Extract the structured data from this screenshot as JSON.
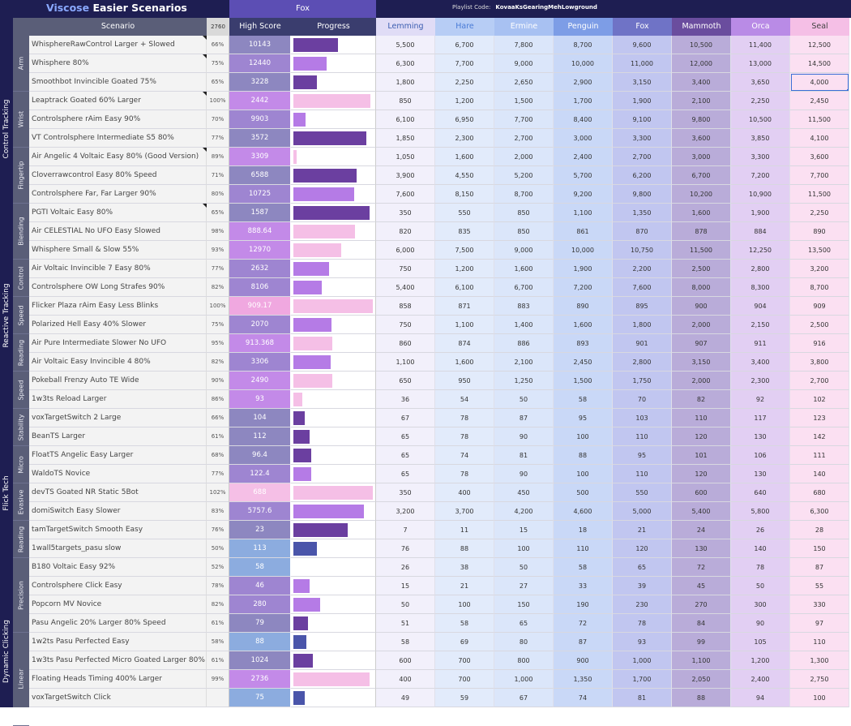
{
  "header": {
    "title_part1": "Viscose",
    "title_part2": "Easier Scenarios",
    "fox_label": "Fox",
    "playlist_label": "Playlist Code:",
    "playlist_code": "KovaaKsGearingMehLowground",
    "scenario_col": "Scenario",
    "pct_col": "2760",
    "highscore_col": "High Score",
    "progress_col": "Progress"
  },
  "ranks": [
    {
      "name": "Lemming",
      "bg": "#e0dcf6",
      "col": "#f2f0fb",
      "fg": "#3b5db0"
    },
    {
      "name": "Hare",
      "bg": "#b7cdf5",
      "col": "#e2ebfb",
      "fg": "#4a7bd6"
    },
    {
      "name": "Ermine",
      "bg": "#a8c1f2",
      "col": "#dbe6fa",
      "fg": "#ffffff"
    },
    {
      "name": "Penguin",
      "bg": "#7d9de6",
      "col": "#c9d8f7",
      "fg": "#ffffff"
    },
    {
      "name": "Fox",
      "bg": "#6f73c6",
      "col": "#c1c6f0",
      "fg": "#ffffff"
    },
    {
      "name": "Mammoth",
      "bg": "#6a4d9e",
      "col": "#b9acd9",
      "fg": "#ffffff"
    },
    {
      "name": "Orca",
      "bg": "#b98be6",
      "col": "#e2cff3",
      "fg": "#ffffff"
    },
    {
      "name": "Seal",
      "bg": "#f5bfe6",
      "col": "#fbe0f2",
      "fg": "#444444"
    }
  ],
  "categories": [
    {
      "label": "Control Tracking",
      "start": 0,
      "count": 10
    },
    {
      "label": "Reactive Tracking",
      "start": 10,
      "count": 10
    },
    {
      "label": "Flick Tech",
      "start": 20,
      "count": 9
    },
    {
      "label": "Dynamic Clicking",
      "start": 29,
      "count": 8
    }
  ],
  "subcategories": [
    {
      "label": "Arm",
      "start": 0,
      "count": 3
    },
    {
      "label": "Wrist",
      "start": 3,
      "count": 3
    },
    {
      "label": "Fingertip",
      "start": 6,
      "count": 3
    },
    {
      "label": "Blending",
      "start": 9,
      "count": 3
    },
    {
      "label": "Control",
      "start": 12,
      "count": 2
    },
    {
      "label": "Speed",
      "start": 14,
      "count": 2
    },
    {
      "label": "Reading",
      "start": 16,
      "count": 2
    },
    {
      "label": "Speed",
      "start": 18,
      "count": 2
    },
    {
      "label": "Stability",
      "start": 20,
      "count": 2
    },
    {
      "label": "Micro",
      "start": 22,
      "count": 2
    },
    {
      "label": "Evasive",
      "start": 24,
      "count": 2
    },
    {
      "label": "Reading",
      "start": 26,
      "count": 2
    },
    {
      "label": "Precision",
      "start": 28,
      "count": 4
    },
    {
      "label": "Linear",
      "start": 32,
      "count": 5
    }
  ],
  "rows": [
    {
      "name": "WhisphereRawControl Larger + Slowed",
      "pct": "66%",
      "hs": "10143",
      "hs_bg": "#8d87c0",
      "prog": 0.56,
      "pc": "#6b3fa0",
      "ranks": [
        "5,500",
        "6,700",
        "7,800",
        "8,700",
        "9,600",
        "10,500",
        "11,400",
        "12,500"
      ],
      "note": true
    },
    {
      "name": "Whisphere 80%",
      "pct": "75%",
      "hs": "12440",
      "hs_bg": "#9e85d1",
      "prog": 0.42,
      "pc": "#b57be6",
      "ranks": [
        "6,300",
        "7,700",
        "9,000",
        "10,000",
        "11,000",
        "12,000",
        "13,000",
        "14,500"
      ],
      "note": true
    },
    {
      "name": "Smoothbot Invincible Goated 75%",
      "pct": "65%",
      "hs": "3228",
      "hs_bg": "#8d87c0",
      "prog": 0.3,
      "pc": "#6b3fa0",
      "ranks": [
        "1,800",
        "2,250",
        "2,650",
        "2,900",
        "3,150",
        "3,400",
        "3,650",
        "4,000"
      ]
    },
    {
      "name": "Leaptrack Goated 60% Larger",
      "pct": "100%",
      "hs": "2442",
      "hs_bg": "#c38ae8",
      "prog": 0.97,
      "pc": "#f5bfe6",
      "ranks": [
        "850",
        "1,200",
        "1,500",
        "1,700",
        "1,900",
        "2,100",
        "2,250",
        "2,450"
      ],
      "note": true
    },
    {
      "name": "Controlsphere rAim Easy 90%",
      "pct": "70%",
      "hs": "9903",
      "hs_bg": "#9e85d1",
      "prog": 0.15,
      "pc": "#b57be6",
      "ranks": [
        "6,100",
        "6,950",
        "7,700",
        "8,400",
        "9,100",
        "9,800",
        "10,500",
        "11,500"
      ]
    },
    {
      "name": "VT Controlsphere Intermediate S5 80%",
      "pct": "77%",
      "hs": "3572",
      "hs_bg": "#8d87c0",
      "prog": 0.92,
      "pc": "#6b3fa0",
      "ranks": [
        "1,850",
        "2,300",
        "2,700",
        "3,000",
        "3,300",
        "3,600",
        "3,850",
        "4,100"
      ]
    },
    {
      "name": "Air Angelic 4 Voltaic Easy 80% (Good Version)",
      "pct": "89%",
      "hs": "3309",
      "hs_bg": "#c38ae8",
      "prog": 0.04,
      "pc": "#f5bfe6",
      "ranks": [
        "1,050",
        "1,600",
        "2,000",
        "2,400",
        "2,700",
        "3,000",
        "3,300",
        "3,600"
      ],
      "note": true
    },
    {
      "name": "Cloverrawcontrol Easy 80% Speed",
      "pct": "71%",
      "hs": "6588",
      "hs_bg": "#8d87c0",
      "prog": 0.8,
      "pc": "#6b3fa0",
      "ranks": [
        "3,900",
        "4,550",
        "5,200",
        "5,700",
        "6,200",
        "6,700",
        "7,200",
        "7,700"
      ]
    },
    {
      "name": "Controlsphere Far, Far Larger 90%",
      "pct": "80%",
      "hs": "10725",
      "hs_bg": "#9e85d1",
      "prog": 0.77,
      "pc": "#b57be6",
      "ranks": [
        "7,600",
        "8,150",
        "8,700",
        "9,200",
        "9,800",
        "10,200",
        "10,900",
        "11,500"
      ]
    },
    {
      "name": "PGTI Voltaic Easy 80%",
      "pct": "65%",
      "hs": "1587",
      "hs_bg": "#8d87c0",
      "prog": 0.96,
      "pc": "#6b3fa0",
      "ranks": [
        "350",
        "550",
        "850",
        "1,100",
        "1,350",
        "1,600",
        "1,900",
        "2,250"
      ],
      "note": true
    },
    {
      "name": "Air CELESTIAL No UFO Easy Slowed",
      "pct": "98%",
      "hs": "888.64",
      "hs_bg": "#c38ae8",
      "prog": 0.78,
      "pc": "#f5bfe6",
      "ranks": [
        "820",
        "835",
        "850",
        "861",
        "870",
        "878",
        "884",
        "890"
      ]
    },
    {
      "name": "Whisphere Small & Slow 55%",
      "pct": "93%",
      "hs": "12970",
      "hs_bg": "#c38ae8",
      "prog": 0.6,
      "pc": "#f5bfe6",
      "ranks": [
        "6,000",
        "7,500",
        "9,000",
        "10,000",
        "10,750",
        "11,500",
        "12,250",
        "13,500"
      ]
    },
    {
      "name": "Air Voltaic Invincible 7 Easy 80%",
      "pct": "77%",
      "hs": "2632",
      "hs_bg": "#9e85d1",
      "prog": 0.45,
      "pc": "#b57be6",
      "ranks": [
        "750",
        "1,200",
        "1,600",
        "1,900",
        "2,200",
        "2,500",
        "2,800",
        "3,200"
      ]
    },
    {
      "name": "Controlsphere OW Long Strafes 90%",
      "pct": "82%",
      "hs": "8106",
      "hs_bg": "#9e85d1",
      "prog": 0.36,
      "pc": "#b57be6",
      "ranks": [
        "5,400",
        "6,100",
        "6,700",
        "7,200",
        "7,600",
        "8,000",
        "8,300",
        "8,700"
      ]
    },
    {
      "name": "Flicker Plaza rAim Easy Less Blinks",
      "pct": "100%",
      "hs": "909.17",
      "hs_bg": "#f0a8e0",
      "prog": 1.0,
      "pc": "#f5bfe6",
      "ranks": [
        "858",
        "871",
        "883",
        "890",
        "895",
        "900",
        "904",
        "909"
      ]
    },
    {
      "name": "Polarized Hell Easy 40% Slower",
      "pct": "75%",
      "hs": "2070",
      "hs_bg": "#9e85d1",
      "prog": 0.48,
      "pc": "#b57be6",
      "ranks": [
        "750",
        "1,100",
        "1,400",
        "1,600",
        "1,800",
        "2,000",
        "2,150",
        "2,500"
      ]
    },
    {
      "name": "Air Pure Intermediate Slower No UFO",
      "pct": "95%",
      "hs": "913.368",
      "hs_bg": "#c38ae8",
      "prog": 0.49,
      "pc": "#f5bfe6",
      "ranks": [
        "860",
        "874",
        "886",
        "893",
        "901",
        "907",
        "911",
        "916"
      ]
    },
    {
      "name": "Air Voltaic Easy Invincible 4 80%",
      "pct": "82%",
      "hs": "3306",
      "hs_bg": "#9e85d1",
      "prog": 0.47,
      "pc": "#b57be6",
      "ranks": [
        "1,100",
        "1,600",
        "2,100",
        "2,450",
        "2,800",
        "3,150",
        "3,400",
        "3,800"
      ]
    },
    {
      "name": "Pokeball Frenzy Auto TE Wide",
      "pct": "90%",
      "hs": "2490",
      "hs_bg": "#c38ae8",
      "prog": 0.49,
      "pc": "#f5bfe6",
      "ranks": [
        "650",
        "950",
        "1,250",
        "1,500",
        "1,750",
        "2,000",
        "2,300",
        "2,700"
      ]
    },
    {
      "name": "1w3ts Reload Larger",
      "pct": "86%",
      "hs": "93",
      "hs_bg": "#c38ae8",
      "prog": 0.11,
      "pc": "#f5bfe6",
      "ranks": [
        "36",
        "54",
        "50",
        "58",
        "70",
        "82",
        "92",
        "102"
      ]
    },
    {
      "name": "voxTargetSwitch 2 Large",
      "pct": "66%",
      "hs": "104",
      "hs_bg": "#8d87c0",
      "prog": 0.14,
      "pc": "#6b3fa0",
      "ranks": [
        "67",
        "78",
        "87",
        "95",
        "103",
        "110",
        "117",
        "123"
      ]
    },
    {
      "name": "BeanTS Larger",
      "pct": "61%",
      "hs": "112",
      "hs_bg": "#8d87c0",
      "prog": 0.2,
      "pc": "#6b3fa0",
      "ranks": [
        "65",
        "78",
        "90",
        "100",
        "110",
        "120",
        "130",
        "142"
      ]
    },
    {
      "name": "FloatTS Angelic Easy Larger",
      "pct": "68%",
      "hs": "96.4",
      "hs_bg": "#8d87c0",
      "prog": 0.22,
      "pc": "#6b3fa0",
      "ranks": [
        "65",
        "74",
        "81",
        "88",
        "95",
        "101",
        "106",
        "111"
      ]
    },
    {
      "name": "WaldoTS Novice",
      "pct": "77%",
      "hs": "122.4",
      "hs_bg": "#9e85d1",
      "prog": 0.22,
      "pc": "#b57be6",
      "ranks": [
        "65",
        "78",
        "90",
        "100",
        "110",
        "120",
        "130",
        "140"
      ]
    },
    {
      "name": "devTS Goated NR Static 5Bot",
      "pct": "102%",
      "hs": "688",
      "hs_bg": "#f5bfe6",
      "prog": 1.0,
      "pc": "#f5bfe6",
      "ranks": [
        "350",
        "400",
        "450",
        "500",
        "550",
        "600",
        "640",
        "680"
      ]
    },
    {
      "name": "domiSwitch Easy Slower",
      "pct": "83%",
      "hs": "5757.6",
      "hs_bg": "#9e85d1",
      "prog": 0.89,
      "pc": "#b57be6",
      "ranks": [
        "3,200",
        "3,700",
        "4,200",
        "4,600",
        "5,000",
        "5,400",
        "5,800",
        "6,300"
      ]
    },
    {
      "name": "tamTargetSwitch Smooth Easy",
      "pct": "76%",
      "hs": "23",
      "hs_bg": "#8d87c0",
      "prog": 0.68,
      "pc": "#6b3fa0",
      "ranks": [
        "7",
        "11",
        "15",
        "18",
        "21",
        "24",
        "26",
        "28"
      ]
    },
    {
      "name": "1wall5targets_pasu slow",
      "pct": "50%",
      "hs": "113",
      "hs_bg": "#8cacdf",
      "prog": 0.3,
      "pc": "#4a55aa",
      "ranks": [
        "76",
        "88",
        "100",
        "110",
        "120",
        "130",
        "140",
        "150"
      ]
    },
    {
      "name": "B180 Voltaic Easy 92%",
      "pct": "52%",
      "hs": "58",
      "hs_bg": "#8cacdf",
      "prog": 0.0,
      "pc": "#4a55aa",
      "ranks": [
        "26",
        "38",
        "50",
        "58",
        "65",
        "72",
        "78",
        "87"
      ]
    },
    {
      "name": "Controlsphere Click Easy",
      "pct": "78%",
      "hs": "46",
      "hs_bg": "#9e85d1",
      "prog": 0.2,
      "pc": "#b57be6",
      "ranks": [
        "15",
        "21",
        "27",
        "33",
        "39",
        "45",
        "50",
        "55"
      ]
    },
    {
      "name": "Popcorn MV Novice",
      "pct": "82%",
      "hs": "280",
      "hs_bg": "#9e85d1",
      "prog": 0.34,
      "pc": "#b57be6",
      "ranks": [
        "50",
        "100",
        "150",
        "190",
        "230",
        "270",
        "300",
        "330"
      ]
    },
    {
      "name": "Pasu Angelic 20% Larger 80% Speed",
      "pct": "61%",
      "hs": "79",
      "hs_bg": "#8d87c0",
      "prog": 0.18,
      "pc": "#6b3fa0",
      "ranks": [
        "51",
        "58",
        "65",
        "72",
        "78",
        "84",
        "90",
        "97"
      ]
    },
    {
      "name": "1w2ts Pasu Perfected Easy",
      "pct": "58%",
      "hs": "88",
      "hs_bg": "#8cacdf",
      "prog": 0.16,
      "pc": "#4a55aa",
      "ranks": [
        "58",
        "69",
        "80",
        "87",
        "93",
        "99",
        "105",
        "110"
      ]
    },
    {
      "name": "1w3ts Pasu Perfected Micro Goated Larger 80%",
      "pct": "61%",
      "hs": "1024",
      "hs_bg": "#8d87c0",
      "prog": 0.24,
      "pc": "#6b3fa0",
      "ranks": [
        "600",
        "700",
        "800",
        "900",
        "1,000",
        "1,100",
        "1,200",
        "1,300"
      ]
    },
    {
      "name": "Floating Heads Timing 400% Larger",
      "pct": "99%",
      "hs": "2736",
      "hs_bg": "#c38ae8",
      "prog": 0.96,
      "pc": "#f5bfe6",
      "ranks": [
        "400",
        "700",
        "1,000",
        "1,350",
        "1,700",
        "2,050",
        "2,400",
        "2,750"
      ]
    },
    {
      "name": "voxTargetSwitch Click",
      "pct": "",
      "hs": "75",
      "hs_bg": "#8cacdf",
      "prog": 0.14,
      "pc": "#4a55aa",
      "ranks": [
        "49",
        "59",
        "67",
        "74",
        "81",
        "88",
        "94",
        "100"
      ]
    }
  ]
}
